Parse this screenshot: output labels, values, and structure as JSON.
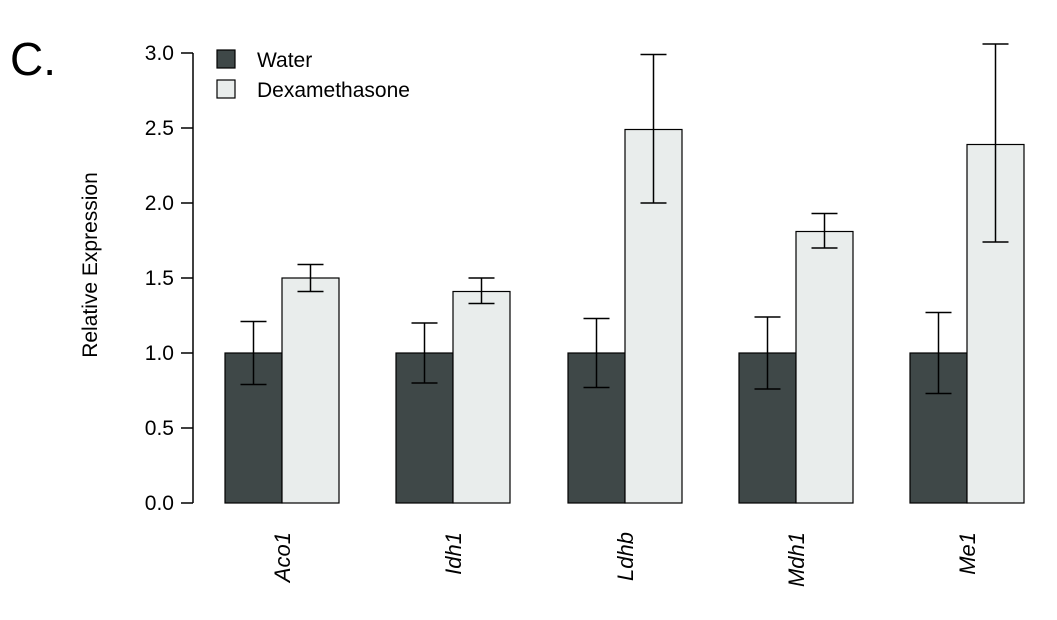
{
  "panel_label": "C.",
  "colors": {
    "water": "#3f4848",
    "dexamethasone": "#e9edec",
    "outline": "#000000"
  },
  "chart_data": {
    "type": "bar",
    "title": "",
    "xlabel": "",
    "ylabel": "Relative Expression",
    "ylim": [
      0,
      3.0
    ],
    "yticks": [
      "0.0",
      "0.5",
      "1.0",
      "1.5",
      "2.0",
      "2.5",
      "3.0"
    ],
    "ytick_values": [
      0,
      0.5,
      1.0,
      1.5,
      2.0,
      2.5,
      3.0
    ],
    "grid": false,
    "legend_position": "top-left",
    "categories": [
      "Aco1",
      "Idh1",
      "Ldhb",
      "Mdh1",
      "Me1"
    ],
    "series": [
      {
        "name": "Water",
        "values": [
          1.0,
          1.0,
          1.0,
          1.0,
          1.0
        ],
        "error_low": [
          0.79,
          0.8,
          0.77,
          0.76,
          0.73
        ],
        "error_high": [
          1.21,
          1.2,
          1.23,
          1.24,
          1.27
        ]
      },
      {
        "name": "Dexamethasone",
        "values": [
          1.5,
          1.41,
          2.49,
          1.81,
          2.39
        ],
        "error_low": [
          1.41,
          1.33,
          2.0,
          1.7,
          1.74
        ],
        "error_high": [
          1.59,
          1.5,
          2.99,
          1.93,
          3.06
        ]
      }
    ]
  }
}
